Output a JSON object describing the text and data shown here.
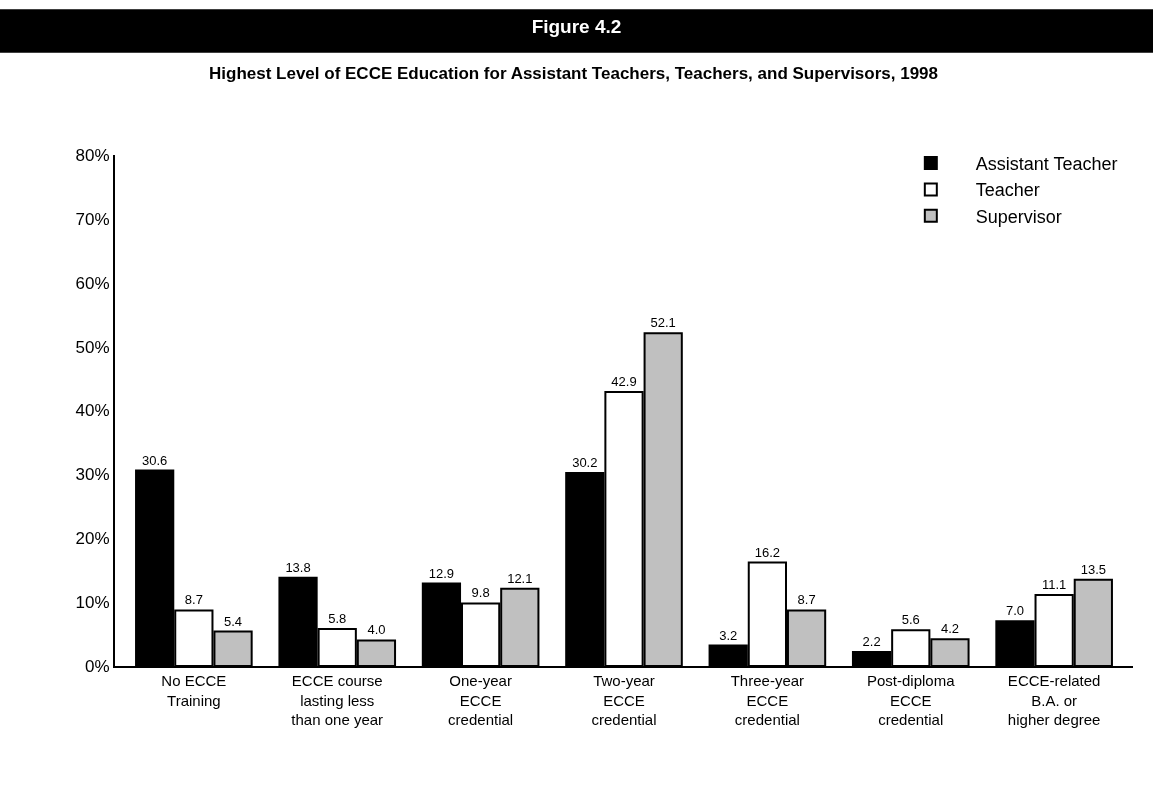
{
  "chart_data": {
    "type": "bar",
    "title": "Figure 4.2",
    "subtitle": "Highest Level of ECCE Education for Assistant Teachers, Teachers, and Supervisors, 1998",
    "categories": [
      "No ECCE\nTraining",
      "ECCE course\nlasting less\nthan one year",
      "One-year\nECCE\ncredential",
      "Two-year\nECCE\ncredential",
      "Three-year\nECCE\ncredential",
      "Post-diploma\nECCE\ncredential",
      "ECCE-related\nB.A. or\nhigher degree"
    ],
    "series": [
      {
        "name": "Assistant Teacher",
        "color": "#000000",
        "values": [
          30.6,
          13.8,
          12.9,
          30.2,
          3.2,
          2.2,
          7.0
        ],
        "value_labels": [
          "30.6",
          "13.8",
          "12.9",
          "30.2",
          "3.2",
          "2.2",
          "7.0"
        ]
      },
      {
        "name": "Teacher",
        "color": "#ffffff",
        "values": [
          8.7,
          5.8,
          9.8,
          42.9,
          16.2,
          5.6,
          11.1
        ],
        "value_labels": [
          "8.7",
          "5.8",
          "9.8",
          "42.9",
          "16.2",
          "5.6",
          "11.1"
        ]
      },
      {
        "name": "Supervisor",
        "color": "#c0c0c0",
        "values": [
          5.4,
          4.0,
          12.1,
          52.1,
          8.7,
          4.2,
          13.5
        ],
        "value_labels": [
          "5.4",
          "4.0",
          "12.1",
          "52.1",
          "8.7",
          "4.2",
          "13.5"
        ]
      }
    ],
    "ylim": [
      0,
      80
    ],
    "yticks": [
      {
        "value": 0,
        "label": "0%"
      },
      {
        "value": 10,
        "label": "10%"
      },
      {
        "value": 20,
        "label": "20%"
      },
      {
        "value": 30,
        "label": "30%"
      },
      {
        "value": 40,
        "label": "40%"
      },
      {
        "value": 50,
        "label": "50%"
      },
      {
        "value": 60,
        "label": "60%"
      },
      {
        "value": 70,
        "label": "70%"
      },
      {
        "value": 80,
        "label": "80%"
      }
    ],
    "legend": "top right"
  }
}
